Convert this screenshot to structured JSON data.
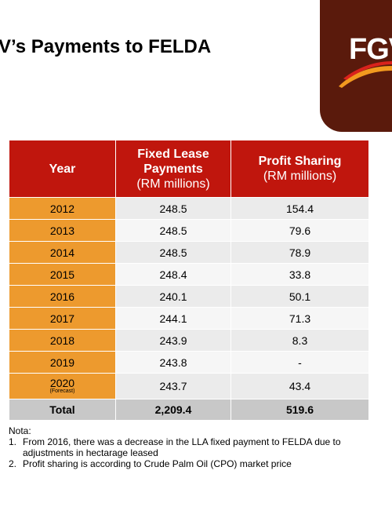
{
  "title": "V’s Payments to FELDA",
  "logo": {
    "text": "FGV",
    "colors": {
      "background": "#5a1a0c",
      "swoosh_orange": "#f29a1f",
      "swoosh_red": "#d9221c"
    }
  },
  "table": {
    "headers": {
      "year": "Year",
      "fixed_title_line1": "Fixed Lease",
      "fixed_title_line2": "Payments",
      "fixed_unit": "(RM millions)",
      "profit_title": "Profit Sharing",
      "profit_unit": "(RM millions)"
    },
    "rows": [
      {
        "year": "2012",
        "fixed": "248.5",
        "profit": "154.4"
      },
      {
        "year": "2013",
        "fixed": "248.5",
        "profit": "79.6"
      },
      {
        "year": "2014",
        "fixed": "248.5",
        "profit": "78.9"
      },
      {
        "year": "2015",
        "fixed": "248.4",
        "profit": "33.8"
      },
      {
        "year": "2016",
        "fixed": "240.1",
        "profit": "50.1"
      },
      {
        "year": "2017",
        "fixed": "244.1",
        "profit": "71.3"
      },
      {
        "year": "2018",
        "fixed": "243.9",
        "profit": "8.3"
      },
      {
        "year": "2019",
        "fixed": "243.8",
        "profit": "-"
      },
      {
        "year": "2020",
        "sub": "(Forecast)",
        "fixed": "243.7",
        "profit": "43.4"
      }
    ],
    "total": {
      "label": "Total",
      "fixed": "2,209.4",
      "profit": "519.6"
    },
    "colors": {
      "header": "#c0160d",
      "year_col": "#ed9a2e",
      "total_row": "#c8c8c8"
    }
  },
  "notes": {
    "heading": "Nota:",
    "items": [
      {
        "num": "1.",
        "text": "From 2016, there was a decrease in the LLA fixed payment to FELDA due to adjustments in hectarage leased"
      },
      {
        "num": "2.",
        "text": "Profit sharing is according to Crude Palm Oil (CPO) market price"
      }
    ]
  }
}
